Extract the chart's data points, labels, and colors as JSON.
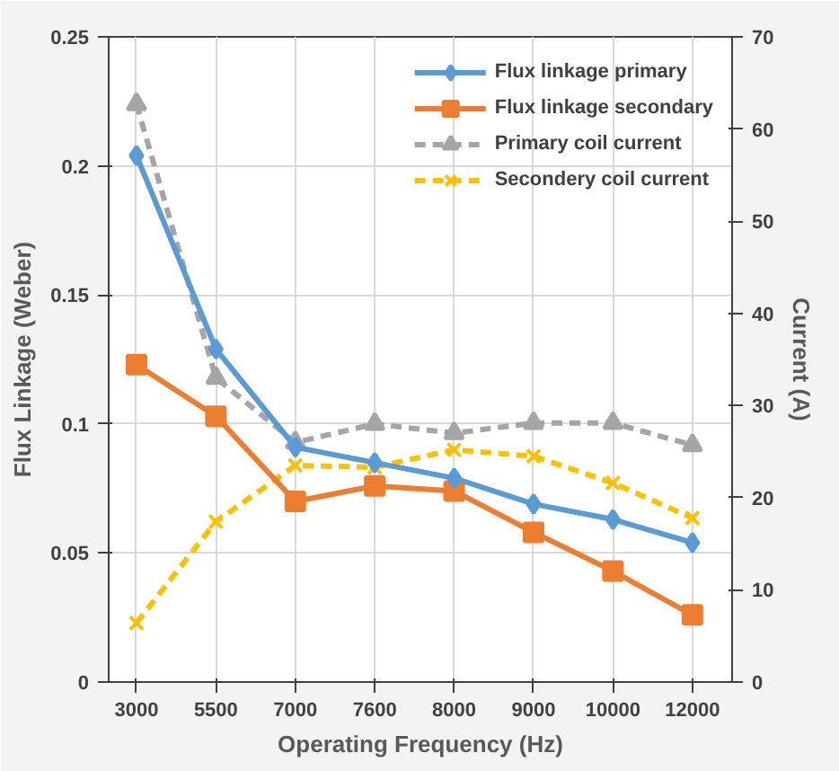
{
  "chart_data": {
    "type": "line",
    "xlabel": "Operating Frequency (Hz)",
    "ylabel": "Flux Linkage (Weber)",
    "y2label": "Current (A)",
    "categories": [
      "3000",
      "5500",
      "7000",
      "7600",
      "8000",
      "9000",
      "10000",
      "12000"
    ],
    "ylim": [
      0,
      0.25
    ],
    "yticks": [
      0,
      0.05,
      0.1,
      0.15,
      0.2,
      0.25
    ],
    "y2lim": [
      0,
      70
    ],
    "y2ticks": [
      0,
      10,
      20,
      30,
      40,
      50,
      60,
      70
    ],
    "grid": true,
    "legend": "top right",
    "series": [
      {
        "name": "Flux linkage primary",
        "color": "#5b9bd5",
        "marker": "diamond",
        "line_style": "solid",
        "values": [
          0.204,
          0.129,
          0.091,
          0.085,
          0.079,
          0.069,
          0.063,
          0.054
        ]
      },
      {
        "name": "Flux linkage secondary",
        "color": "#ed7d31",
        "marker": "square",
        "line_style": "solid",
        "values": [
          0.123,
          0.103,
          0.07,
          0.076,
          0.074,
          0.058,
          0.043,
          0.026
        ]
      },
      {
        "name": "Primary coil current",
        "color": "#a5a5a5",
        "marker": "triangle",
        "line_style": "dashed",
        "axis": "y2",
        "values": [
          62.7,
          33,
          26,
          28,
          27,
          28.1,
          28.1,
          25.7
        ]
      },
      {
        "name": "Secondery coil current",
        "color": "#ffc000",
        "marker": "cross",
        "line_style": "dashed",
        "axis": "y2",
        "values": [
          6.4,
          17.4,
          23.5,
          23.3,
          25.2,
          24.5,
          21.6,
          17.8
        ]
      }
    ]
  }
}
